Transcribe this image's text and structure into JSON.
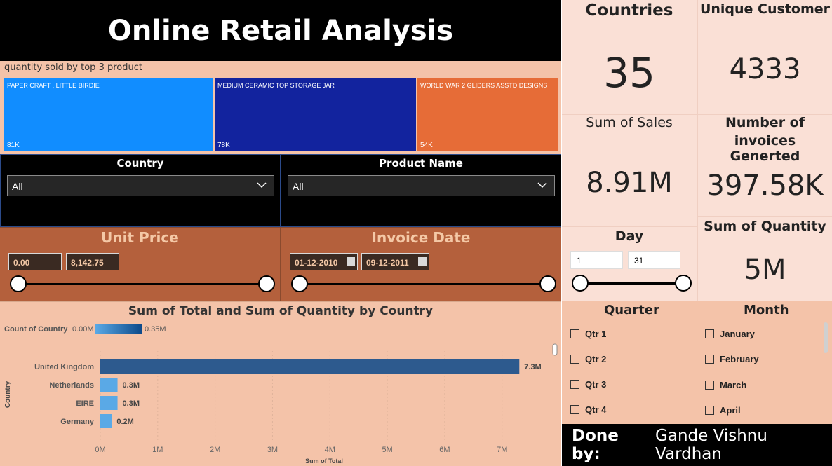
{
  "title": "Online Retail Analysis",
  "treemap": {
    "caption": "quantity sold by top 3 product",
    "items": [
      {
        "name": "PAPER CRAFT , LITTLE BIRDIE",
        "value": "81K",
        "color": "#118dff"
      },
      {
        "name": "MEDIUM CERAMIC TOP STORAGE JAR",
        "value": "78K",
        "color": "#12239e"
      },
      {
        "name": "WORLD WAR 2 GLIDERS ASSTD DESIGNS",
        "value": "54K",
        "color": "#e66c37"
      }
    ]
  },
  "filters": {
    "country": {
      "label": "Country",
      "value": "All"
    },
    "product": {
      "label": "Product Name",
      "value": "All"
    }
  },
  "unit_price": {
    "label": "Unit Price",
    "min": "0.00",
    "max": "8,142.75"
  },
  "invoice_date": {
    "label": "Invoice Date",
    "start": "01-12-2010",
    "end": "09-12-2011"
  },
  "day": {
    "label": "Day",
    "min": "1",
    "max": "31"
  },
  "kpis": {
    "countries": {
      "label": "Countries",
      "value": "35"
    },
    "unique_customer": {
      "label": "Unique Customer",
      "value": "4333"
    },
    "sum_sales": {
      "label": "Sum of Sales",
      "value": "8.91M"
    },
    "invoices": {
      "label_line1": "Number of",
      "label_line2": "invoices Generted",
      "value": "397.58K"
    },
    "sum_quantity": {
      "label": "Sum of Quantity",
      "value": "5M"
    }
  },
  "chart_data": {
    "type": "bar",
    "title": "Sum of Total and Sum of Quantity by Country",
    "legend": {
      "label": "Count of Country",
      "min_label": "0.00M",
      "max_label": "0.35M"
    },
    "categories": [
      "United Kingdom",
      "Netherlands",
      "EIRE",
      "Germany"
    ],
    "values": [
      7.3,
      0.3,
      0.3,
      0.2
    ],
    "value_labels": [
      "7.3M",
      "0.3M",
      "0.3M",
      "0.2M"
    ],
    "xlabel": "Sum of Total",
    "ylabel": "Country",
    "xticks": [
      "0M",
      "1M",
      "2M",
      "3M",
      "4M",
      "5M",
      "6M",
      "7M"
    ],
    "xlim": [
      0,
      7.7
    ],
    "colors": {
      "top": "#2d5a8e",
      "other": "#5aa9e6"
    }
  },
  "quarter": {
    "label": "Quarter",
    "items": [
      "Qtr 1",
      "Qtr 2",
      "Qtr 3",
      "Qtr 4"
    ]
  },
  "month": {
    "label": "Month",
    "items": [
      "January",
      "February",
      "March",
      "April"
    ]
  },
  "credit": {
    "prefix": "Done by:",
    "name": "Gande Vishnu Vardhan"
  }
}
